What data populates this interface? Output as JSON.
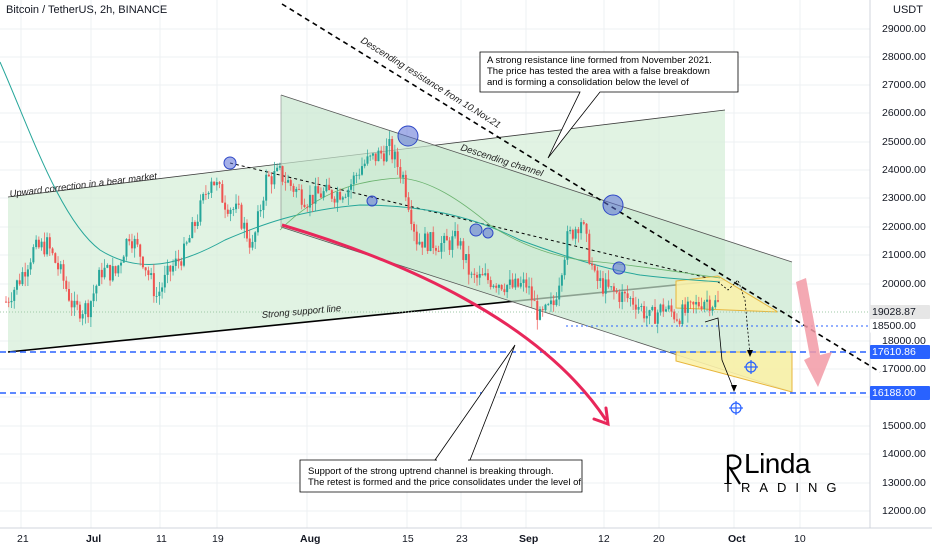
{
  "header": {
    "title": "Bitcoin / TetherUS, 2h, BINANCE"
  },
  "price_axis": {
    "unit": "USDT",
    "labels": [
      "29000.00",
      "28000.00",
      "27000.00",
      "26000.00",
      "25000.00",
      "24000.00",
      "23000.00",
      "22000.00",
      "21000.00",
      "20000.00",
      "18000.00",
      "17000.00",
      "16000.00",
      "15000.00",
      "14000.00",
      "13000.00",
      "12000.00"
    ],
    "tags": [
      {
        "value": "19028.87",
        "bg": "#e6e6e6",
        "fg": "#131722"
      },
      {
        "value": "18500.00",
        "bg": "#ffffff",
        "fg": "#131722"
      },
      {
        "value": "17610.86",
        "bg": "#2962ff",
        "fg": "#ffffff"
      },
      {
        "value": "16188.00",
        "bg": "#2962ff",
        "fg": "#ffffff"
      }
    ]
  },
  "time_axis": {
    "labels": [
      "21",
      "Jul",
      "11",
      "19",
      "Aug",
      "15",
      "23",
      "Sep",
      "12",
      "20",
      "Oct",
      "10"
    ]
  },
  "annotations": {
    "upward_correction": "Upward correction in a bear market",
    "strong_support": "Strong support line",
    "descending_resistance": "Descending resistance from 10.Nov.21",
    "descending_channel": "Descending channel",
    "callout_top": [
      "A strong resistance line formed from November 2021.",
      "The price has tested the area with a false breakdown",
      "and is forming a consolidation below the level of"
    ],
    "callout_bottom": [
      "Support of the strong uptrend channel is breaking through.",
      "The retest is formed and the price consolidates under the level of"
    ]
  },
  "logo": {
    "main": "Linda",
    "sub": "TRADING"
  },
  "colors": {
    "background": "#ffffff",
    "channel_up_fill": "#d7efd9",
    "channel_down_fill": "#cce8d2",
    "blue_level": "#2962ff",
    "curve_red": "#e8275a",
    "arrow_red": "#f29aa6",
    "triangle_yellow": "#fbf1a8",
    "candle_up": "#26a69a",
    "candle_down": "#ef5350",
    "circle_blue": "#5b6fd6"
  },
  "chart_data": {
    "type": "candlestick",
    "symbol": "Bitcoin / TetherUS, 2h, BINANCE",
    "unit": "USDT",
    "ylim": [
      11700,
      29800
    ],
    "x_ticks": [
      "21",
      "Jul",
      "11",
      "19",
      "Aug",
      "15",
      "23",
      "Sep",
      "12",
      "20",
      "Oct",
      "10"
    ],
    "levels": [
      19028.87,
      18500.0,
      17610.86,
      16188.0
    ],
    "price_path": [
      [
        "06-21",
        19400
      ],
      [
        "06-22",
        20200
      ],
      [
        "06-24",
        21200
      ],
      [
        "06-26",
        21400
      ],
      [
        "06-28",
        20400
      ],
      [
        "06-30",
        19100
      ],
      [
        "07-02",
        19200
      ],
      [
        "07-04",
        20500
      ],
      [
        "07-06",
        20400
      ],
      [
        "07-08",
        21800
      ],
      [
        "07-10",
        20900
      ],
      [
        "07-12",
        19600
      ],
      [
        "07-14",
        20500
      ],
      [
        "07-16",
        21100
      ],
      [
        "07-18",
        22400
      ],
      [
        "07-20",
        23800
      ],
      [
        "07-22",
        22900
      ],
      [
        "07-24",
        22500
      ],
      [
        "07-26",
        21300
      ],
      [
        "07-28",
        23700
      ],
      [
        "07-30",
        23900
      ],
      [
        "08-01",
        23400
      ],
      [
        "08-03",
        23000
      ],
      [
        "08-05",
        23200
      ],
      [
        "08-07",
        23200
      ],
      [
        "08-09",
        23400
      ],
      [
        "08-11",
        24200
      ],
      [
        "08-13",
        24500
      ],
      [
        "08-15",
        24800
      ],
      [
        "08-17",
        23800
      ],
      [
        "08-19",
        21600
      ],
      [
        "08-21",
        21500
      ],
      [
        "08-23",
        21400
      ],
      [
        "08-25",
        21600
      ],
      [
        "08-27",
        20200
      ],
      [
        "08-29",
        20200
      ],
      [
        "08-31",
        20100
      ],
      [
        "09-02",
        19900
      ],
      [
        "09-04",
        20000
      ],
      [
        "09-06",
        18800
      ],
      [
        "09-08",
        19300
      ],
      [
        "09-10",
        21600
      ],
      [
        "09-12",
        22300
      ],
      [
        "09-13",
        20200
      ],
      [
        "09-15",
        19800
      ],
      [
        "09-17",
        19600
      ],
      [
        "09-19",
        19400
      ],
      [
        "09-21",
        18800
      ],
      [
        "09-23",
        19200
      ],
      [
        "09-25",
        18900
      ],
      [
        "09-27",
        19100
      ],
      [
        "09-29",
        19500
      ],
      [
        "10-01",
        19300
      ]
    ]
  }
}
